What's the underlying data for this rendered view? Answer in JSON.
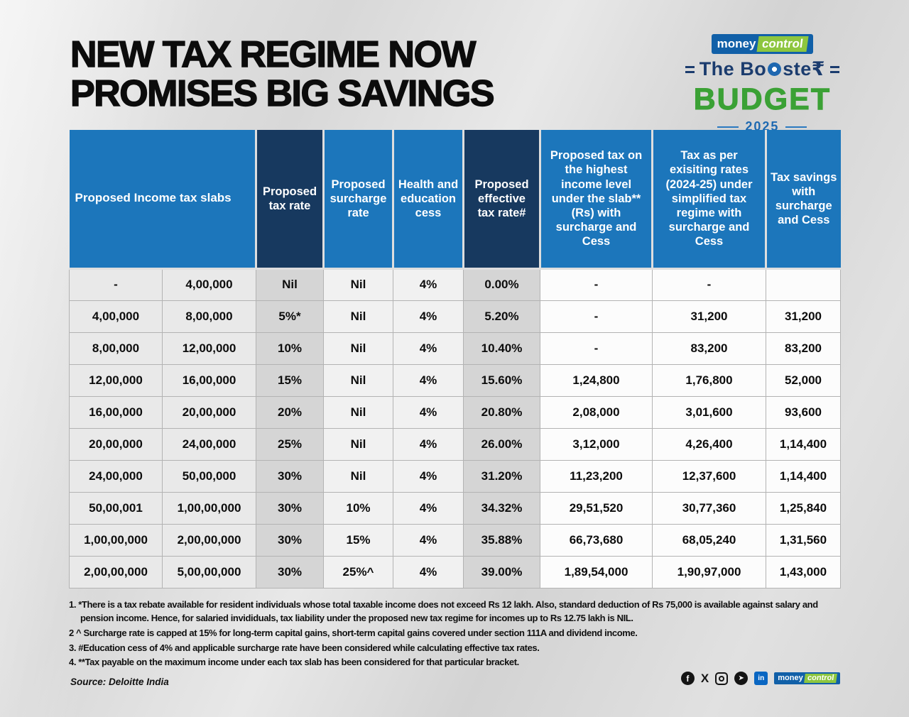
{
  "header": {
    "title_line1": "NEW TAX REGIME NOW",
    "title_line2": "PROMISES BIG SAVINGS"
  },
  "brand": {
    "mc_money": "money",
    "mc_control": "control",
    "booster_left": "The Bo",
    "booster_right": "ste₹",
    "budget": "BUDGET",
    "year": "2025"
  },
  "chart_data": {
    "type": "table",
    "title": "New tax regime now promises big savings",
    "header_groups": [
      {
        "label": "Proposed Income tax slabs",
        "colspan": 2,
        "style": "blue"
      },
      {
        "label": "Proposed tax rate",
        "colspan": 1,
        "style": "navy"
      },
      {
        "label": "Proposed surcharge rate",
        "colspan": 1,
        "style": "blue"
      },
      {
        "label": "Health and education cess",
        "colspan": 1,
        "style": "blue"
      },
      {
        "label": "Proposed effective tax rate#",
        "colspan": 1,
        "style": "navy"
      },
      {
        "label": "Proposed tax on the highest income level under the slab** (Rs) with surcharge and Cess",
        "colspan": 1,
        "style": "blue"
      },
      {
        "label": "Tax as per exisiting rates (2024-25) under simplified tax regime with surcharge and Cess",
        "colspan": 1,
        "style": "blue"
      },
      {
        "label": "Tax savings with surcharge and Cess",
        "colspan": 1,
        "style": "blue"
      }
    ],
    "rows": [
      [
        "-",
        "4,00,000",
        "Nil",
        "Nil",
        "4%",
        "0.00%",
        "-",
        "-",
        ""
      ],
      [
        "4,00,000",
        "8,00,000",
        "5%*",
        "Nil",
        "4%",
        "5.20%",
        "-",
        "31,200",
        "31,200"
      ],
      [
        "8,00,000",
        "12,00,000",
        "10%",
        "Nil",
        "4%",
        "10.40%",
        "-",
        "83,200",
        "83,200"
      ],
      [
        "12,00,000",
        "16,00,000",
        "15%",
        "Nil",
        "4%",
        "15.60%",
        "1,24,800",
        "1,76,800",
        "52,000"
      ],
      [
        "16,00,000",
        "20,00,000",
        "20%",
        "Nil",
        "4%",
        "20.80%",
        "2,08,000",
        "3,01,600",
        "93,600"
      ],
      [
        "20,00,000",
        "24,00,000",
        "25%",
        "Nil",
        "4%",
        "26.00%",
        "3,12,000",
        "4,26,400",
        "1,14,400"
      ],
      [
        "24,00,000",
        "50,00,000",
        "30%",
        "Nil",
        "4%",
        "31.20%",
        "11,23,200",
        "12,37,600",
        "1,14,400"
      ],
      [
        "50,00,001",
        "1,00,00,000",
        "30%",
        "10%",
        "4%",
        "34.32%",
        "29,51,520",
        "30,77,360",
        "1,25,840"
      ],
      [
        "1,00,00,000",
        "2,00,00,000",
        "30%",
        "15%",
        "4%",
        "35.88%",
        "66,73,680",
        "68,05,240",
        "1,31,560"
      ],
      [
        "2,00,00,000",
        "5,00,00,000",
        "30%",
        "25%^",
        "4%",
        "39.00%",
        "1,89,54,000",
        "1,90,97,000",
        "1,43,000"
      ]
    ]
  },
  "footnotes": [
    "1. *There is a tax rebate available for resident individuals whose total taxable income does not exceed Rs 12 lakh. Also, standard deduction of Rs 75,000 is available against salary and pension income. Hence, for salaried invididuals, tax liability under the proposed new tax regime for incomes up to Rs 12.75 lakh is NIL.",
    "2 ^ Surcharge rate is capped at 15% for long-term capital gains, short-term capital gains covered under section 111A and dividend income.",
    "3. #Education cess of 4% and applicable surcharge rate have been considered while calculating effective tax rates.",
    "4. **Tax payable on the maximum income under each tax slab has been considered for that particular bracket."
  ],
  "source": "Source: Deloitte India",
  "icons": {
    "facebook": "f",
    "x": "X",
    "telegram": "➤",
    "linkedin": "in"
  },
  "colors": {
    "header_blue": "#1c76bb",
    "header_navy": "#17395f",
    "body_gray": "#d5d5d5",
    "budget_green": "#3ba135",
    "mc_blue": "#1160a8",
    "mc_green": "#8dc63f",
    "linkedin_blue": "#0a66c2"
  }
}
